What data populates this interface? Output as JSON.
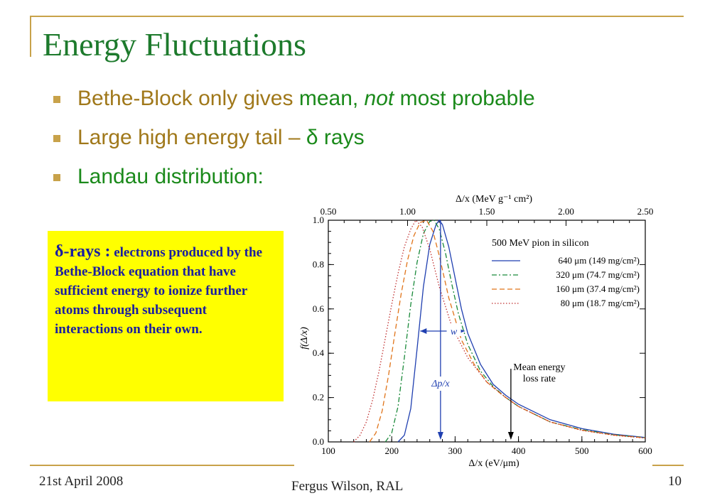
{
  "slide": {
    "title": "Energy Fluctuations",
    "bullets": [
      {
        "parts": [
          {
            "text": "Bethe-Block only gives ",
            "color": "olive"
          },
          {
            "text": "mean, ",
            "color": "green"
          },
          {
            "text": "not",
            "color": "green",
            "italic": true
          },
          {
            "text": " most probable",
            "color": "green"
          }
        ]
      },
      {
        "parts": [
          {
            "text": "Large high energy tail – ",
            "color": "olive"
          },
          {
            "text": "δ rays",
            "color": "green"
          }
        ]
      },
      {
        "parts": [
          {
            "text": "Landau distribution:",
            "color": "green"
          }
        ]
      }
    ],
    "note": {
      "heading": "δ-rays :",
      "body": " electrons produced by the Bethe-Block equation that have sufficient energy to ionize further atoms through subsequent interactions on their own."
    },
    "footer": {
      "date": "21st April 2008",
      "author": "Fergus Wilson, RAL",
      "page": "10"
    },
    "colors": {
      "accent": "#c8a24a",
      "title": "#1d7a2c",
      "olive": "#a0781a",
      "green": "#1b8a1b",
      "note_bg": "#ffff00",
      "note_text": "#1a1ea0"
    }
  },
  "chart_data": {
    "type": "line",
    "title": "500 MeV pion in silicon",
    "xlabel": "Δ/x  (eV/μm)",
    "xlabel_top": "Δ/x  (MeV g⁻¹ cm²)",
    "ylabel": "f(Δ/x)",
    "xlim": [
      100,
      600
    ],
    "ylim": [
      0,
      1.0
    ],
    "x_ticks": [
      100,
      200,
      300,
      400,
      500,
      600
    ],
    "x_tick_labels": [
      "100",
      "200",
      "300",
      "400",
      "500",
      "600"
    ],
    "x_top_ticks": [
      0.5,
      1.0,
      1.5,
      2.0,
      2.5
    ],
    "x_top_tick_labels": [
      "0.50",
      "1.00",
      "1.50",
      "2.00",
      "2.50"
    ],
    "y_ticks": [
      0,
      0.2,
      0.4,
      0.6,
      0.8,
      1.0
    ],
    "y_tick_labels": [
      "0.0",
      "0.2",
      "0.4",
      "0.6",
      "0.8",
      "1.0"
    ],
    "series": [
      {
        "name": "640 μm (149 mg/cm²)",
        "color": "#1f3fb0",
        "dash": "solid",
        "x": [
          210,
          220,
          230,
          240,
          250,
          260,
          270,
          275,
          280,
          290,
          300,
          310,
          320,
          340,
          360,
          380,
          400,
          450,
          500,
          550,
          600
        ],
        "y": [
          0.0,
          0.03,
          0.15,
          0.42,
          0.7,
          0.89,
          0.98,
          1.0,
          0.98,
          0.88,
          0.74,
          0.6,
          0.49,
          0.35,
          0.26,
          0.21,
          0.17,
          0.1,
          0.06,
          0.035,
          0.02
        ]
      },
      {
        "name": "320 μm (74.7 mg/cm²)",
        "color": "#1a8a3a",
        "dash": "dashdot",
        "x": [
          190,
          200,
          210,
          220,
          230,
          240,
          250,
          260,
          267,
          275,
          285,
          295,
          305,
          320,
          340,
          360,
          380,
          400,
          450,
          500,
          550,
          600
        ],
        "y": [
          0.0,
          0.04,
          0.16,
          0.38,
          0.62,
          0.81,
          0.94,
          0.995,
          1.0,
          0.96,
          0.85,
          0.71,
          0.58,
          0.44,
          0.32,
          0.25,
          0.2,
          0.16,
          0.09,
          0.055,
          0.032,
          0.019
        ]
      },
      {
        "name": "160 μm (37.4 mg/cm²)",
        "color": "#e0741a",
        "dash": "dashed",
        "x": [
          165,
          175,
          185,
          195,
          205,
          215,
          225,
          235,
          245,
          255,
          265,
          275,
          290,
          310,
          330,
          350,
          375,
          400,
          450,
          500,
          550,
          600
        ],
        "y": [
          0.0,
          0.04,
          0.14,
          0.3,
          0.49,
          0.67,
          0.82,
          0.93,
          0.99,
          1.0,
          0.95,
          0.84,
          0.65,
          0.46,
          0.35,
          0.27,
          0.21,
          0.16,
          0.09,
          0.053,
          0.031,
          0.018
        ]
      },
      {
        "name": "80 μm (18.7 mg/cm²)",
        "color": "#c03030",
        "dash": "dotted",
        "x": [
          140,
          150,
          160,
          170,
          180,
          190,
          200,
          210,
          220,
          230,
          238,
          248,
          260,
          275,
          295,
          320,
          350,
          380,
          400,
          450,
          500,
          550,
          600
        ],
        "y": [
          0.0,
          0.03,
          0.09,
          0.19,
          0.32,
          0.47,
          0.62,
          0.76,
          0.88,
          0.96,
          1.0,
          0.97,
          0.87,
          0.7,
          0.52,
          0.38,
          0.27,
          0.2,
          0.16,
          0.09,
          0.052,
          0.03,
          0.017
        ]
      }
    ],
    "annotations": {
      "width_label": "w",
      "peak_label": "Δp/x",
      "peak_x": 277,
      "width_x": [
        245,
        315
      ],
      "width_y": 0.5,
      "mean_label": "Mean energy loss rate",
      "mean_x": 388
    }
  }
}
